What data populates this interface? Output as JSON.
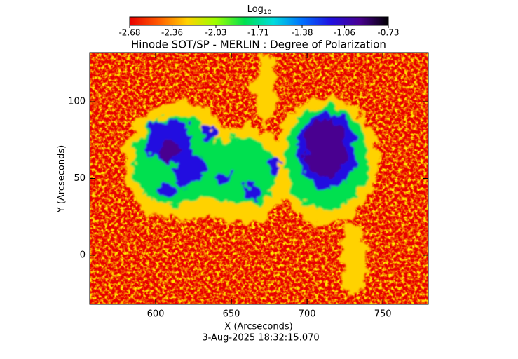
{
  "chart_data": {
    "type": "heatmap",
    "title": "Hinode SOT/SP - MERLIN : Degree of Polarization",
    "xlabel": "X (Arcseconds)",
    "ylabel": "Y (Arcseconds)",
    "footer": "3-Aug-2025 18:32:15.070",
    "colorbar_label": "Log",
    "colorbar_label_subscript": "10",
    "clim": [
      -2.68,
      -0.73
    ],
    "cticks": [
      -2.68,
      -2.36,
      -2.03,
      -1.71,
      -1.38,
      -1.06,
      -0.73
    ],
    "colormap": [
      "#e80000",
      "#ff5a00",
      "#ffd200",
      "#9cff00",
      "#00e050",
      "#00dcdc",
      "#0070ff",
      "#2010e0",
      "#480090",
      "#000000"
    ],
    "xlim": [
      556.5,
      780
    ],
    "xticks": [
      600,
      650,
      700,
      750
    ],
    "ylim": [
      -32,
      132
    ],
    "yticks": [
      0,
      50,
      100
    ]
  }
}
